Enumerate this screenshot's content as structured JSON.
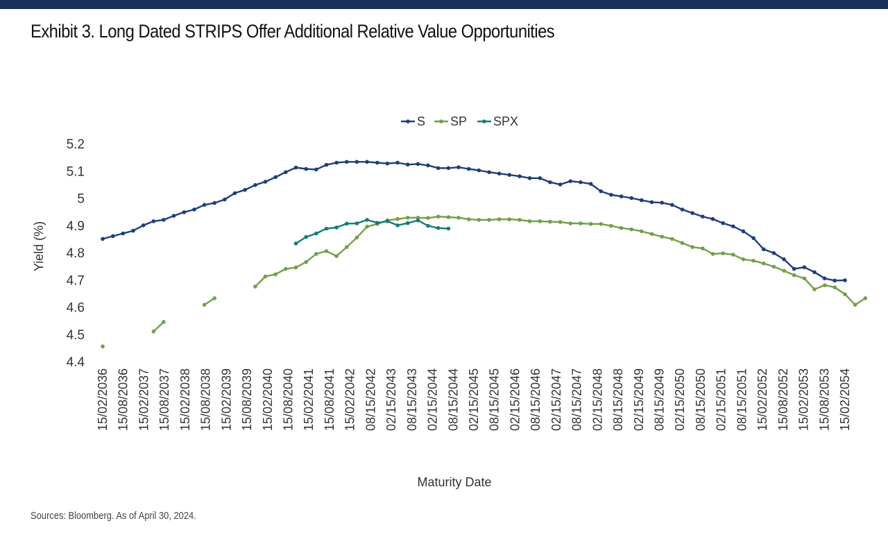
{
  "page": {
    "title": "Exhibit 3. Long Dated STRIPS Offer Additional Relative Value Opportunities",
    "source": "Sources: Bloomberg. As of April 30, 2024."
  },
  "colors": {
    "S": "#1f3d7a",
    "SP": "#70a04a",
    "SPX": "#157a7a",
    "header": "#1a2f5c"
  },
  "chart_data": {
    "type": "line",
    "title": "",
    "xlabel": "Maturity Date",
    "ylabel": "Yield (%)",
    "ylim": [
      4.4,
      5.2
    ],
    "yticks": [
      "4.4",
      "4.5",
      "4.6",
      "4.7",
      "4.8",
      "4.9",
      "5",
      "5.1",
      "5.2"
    ],
    "grid": false,
    "legend": "top-center",
    "x_tick_labels": [
      "15/02/2036",
      "15/08/2036",
      "15/02/2037",
      "15/08/2037",
      "15/02/2038",
      "15/08/2038",
      "15/02/2039",
      "15/08/2039",
      "15/02/2040",
      "15/08/2040",
      "15/02/2041",
      "15/08/2041",
      "15/02/2042",
      "08/15/2042",
      "02/15/2043",
      "08/15/2043",
      "02/15/2044",
      "08/15/2044",
      "02/15/2045",
      "08/15/2045",
      "02/15/2046",
      "08/15/2046",
      "02/15/2047",
      "08/15/2047",
      "02/15/2048",
      "08/15/2048",
      "02/15/2049",
      "08/15/2049",
      "02/15/2050",
      "08/15/2050",
      "02/15/2051",
      "08/15/2051",
      "15/02/2052",
      "15/08/2052",
      "15/02/2053",
      "15/08/2053",
      "15/02/2054"
    ],
    "series": [
      {
        "name": "S",
        "values": [
          4.85,
          4.86,
          4.87,
          4.88,
          4.9,
          4.915,
          4.92,
          4.935,
          4.948,
          4.958,
          4.975,
          4.982,
          4.995,
          5.018,
          5.03,
          5.048,
          5.06,
          5.077,
          5.095,
          5.112,
          5.107,
          5.105,
          5.122,
          5.13,
          5.133,
          5.133,
          5.133,
          5.13,
          5.127,
          5.13,
          5.123,
          5.125,
          5.12,
          5.11,
          5.11,
          5.113,
          5.107,
          5.102,
          5.095,
          5.09,
          5.085,
          5.08,
          5.073,
          5.073,
          5.058,
          5.05,
          5.062,
          5.058,
          5.052,
          5.025,
          5.012,
          5.006,
          5,
          4.992,
          4.985,
          4.983,
          4.975,
          4.958,
          4.945,
          4.932,
          4.923,
          4.908,
          4.896,
          4.878,
          4.853,
          4.812,
          4.798,
          4.775,
          4.74,
          4.746,
          4.728,
          4.705,
          4.697,
          4.698
        ]
      },
      {
        "name": "SP",
        "values": [
          4.455,
          null,
          null,
          null,
          null,
          4.51,
          4.545,
          null,
          null,
          null,
          4.608,
          4.632,
          null,
          null,
          null,
          4.675,
          4.712,
          4.72,
          4.74,
          4.745,
          4.765,
          4.795,
          4.805,
          4.787,
          4.82,
          4.855,
          4.895,
          4.905,
          4.918,
          4.923,
          4.928,
          4.928,
          4.927,
          4.932,
          4.93,
          4.928,
          4.922,
          4.92,
          4.92,
          4.922,
          4.922,
          4.92,
          4.915,
          4.915,
          4.913,
          4.912,
          4.907,
          4.907,
          4.905,
          4.905,
          4.898,
          4.89,
          4.885,
          4.878,
          4.868,
          4.858,
          4.85,
          4.835,
          4.82,
          4.815,
          4.795,
          4.797,
          4.792,
          4.775,
          4.77,
          4.76,
          4.748,
          4.733,
          4.717,
          4.705,
          4.665,
          4.68,
          4.672,
          4.647,
          4.608,
          4.632
        ]
      },
      {
        "name": "SPX",
        "values": [
          null,
          null,
          null,
          null,
          null,
          null,
          null,
          null,
          null,
          null,
          null,
          null,
          null,
          null,
          null,
          null,
          null,
          null,
          null,
          4.833,
          4.857,
          4.87,
          4.888,
          4.892,
          4.906,
          4.907,
          4.92,
          4.909,
          4.915,
          4.9,
          4.908,
          4.918,
          4.898,
          4.89,
          4.888
        ]
      }
    ]
  }
}
